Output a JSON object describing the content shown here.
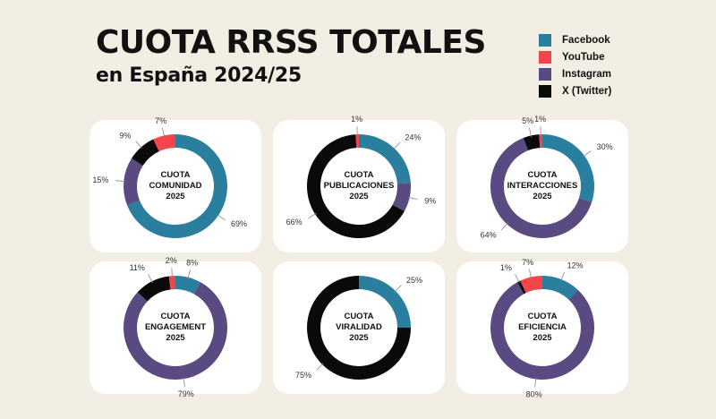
{
  "header": {
    "title": "CUOTA RRSS TOTALES",
    "subtitle": "en España 2024/25"
  },
  "colors": {
    "facebook": "#2a7f9e",
    "youtube": "#f2464b",
    "instagram": "#5a4a82",
    "twitter": "#0a0a0a"
  },
  "legend": [
    {
      "label": "Facebook",
      "color": "#2a7f9e"
    },
    {
      "label": "YouTube",
      "color": "#f2464b"
    },
    {
      "label": "Instagram",
      "color": "#5a4a82"
    },
    {
      "label": "X (Twitter)",
      "color": "#0a0a0a"
    }
  ],
  "chart_data": [
    {
      "type": "pie",
      "donut": true,
      "center_label": [
        "CUOTA",
        "COMUNIDAD",
        "2025"
      ],
      "series": [
        "Facebook",
        "YouTube",
        "Instagram",
        "X (Twitter)"
      ],
      "values": [
        69,
        7,
        15,
        9
      ],
      "labels": [
        "69%",
        "7%",
        "15%",
        "9%"
      ]
    },
    {
      "type": "pie",
      "donut": true,
      "center_label": [
        "CUOTA",
        "PUBLICACIONES",
        "2025"
      ],
      "series": [
        "Facebook",
        "YouTube",
        "Instagram",
        "X (Twitter)"
      ],
      "values": [
        24,
        1,
        9,
        66
      ],
      "labels": [
        "24%",
        "1%",
        "9%",
        "66%"
      ]
    },
    {
      "type": "pie",
      "donut": true,
      "center_label": [
        "CUOTA",
        "INTERACCIONES",
        "2025"
      ],
      "series": [
        "Facebook",
        "YouTube",
        "Instagram",
        "X (Twitter)"
      ],
      "values": [
        30,
        1,
        64,
        5
      ],
      "labels": [
        "30%",
        "1%",
        "64%",
        "5%"
      ]
    },
    {
      "type": "pie",
      "donut": true,
      "center_label": [
        "CUOTA",
        "ENGAGEMENT",
        "2025"
      ],
      "series": [
        "Facebook",
        "YouTube",
        "Instagram",
        "X (Twitter)"
      ],
      "values": [
        8,
        2,
        79,
        11
      ],
      "labels": [
        "8%",
        "2%",
        "79%",
        "11%"
      ]
    },
    {
      "type": "pie",
      "donut": true,
      "center_label": [
        "CUOTA",
        "VIRALIDAD",
        "2025"
      ],
      "series": [
        "Facebook",
        "YouTube",
        "Instagram",
        "X (Twitter)"
      ],
      "values": [
        25,
        0,
        0,
        75
      ],
      "labels": [
        "25%",
        "",
        "",
        "75%"
      ]
    },
    {
      "type": "pie",
      "donut": true,
      "center_label": [
        "CUOTA",
        "EFICIENCIA",
        "2025"
      ],
      "series": [
        "Facebook",
        "YouTube",
        "Instagram",
        "X (Twitter)"
      ],
      "values": [
        12,
        7,
        80,
        1
      ],
      "labels": [
        "12%",
        "7%",
        "80%",
        "1%"
      ]
    }
  ]
}
